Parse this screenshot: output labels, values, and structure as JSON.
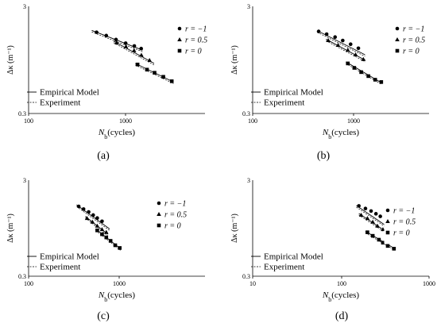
{
  "figure": {
    "panel_labels": [
      "(a)",
      "(b)",
      "(c)",
      "(d)"
    ],
    "y_axis_label": "Δκ (m⁻¹)",
    "x_axis_label_main": "N",
    "x_axis_label_sub": "b",
    "x_axis_label_rest": "(cycles)",
    "model_legend": {
      "empirical": "Empirical Model",
      "experiment": "Experiment"
    },
    "series_legend": {
      "r_minus1": "r = −1",
      "r_half": "r = 0.5",
      "r_zero": "r = 0"
    }
  },
  "chart_data": [
    {
      "type": "scatter",
      "panel": "(a)",
      "xlabel": "Nb(cycles)",
      "ylabel": "Δκ (m⁻¹)",
      "xscale": "log",
      "yscale": "log",
      "xlim": [
        100,
        10000
      ],
      "ylim": [
        0.3,
        3
      ],
      "x_tick_labels": [
        "100",
        "1000"
      ],
      "y_tick_labels": [
        "0.3",
        "3"
      ],
      "series": [
        {
          "name": "r = −1",
          "marker": "circle",
          "x": [
            590,
            760,
            980,
            1260,
            1580,
            1890
          ],
          "y": [
            1.72,
            1.6,
            1.47,
            1.36,
            1.28,
            1.21
          ]
        },
        {
          "name": "r = 0.5",
          "marker": "triangle",
          "x": [
            1000,
            1270,
            1570,
            1900,
            2350
          ],
          "y": [
            1.37,
            1.26,
            1.16,
            1.05,
            0.94
          ]
        },
        {
          "name": "r = 0",
          "marker": "square",
          "x": [
            1720,
            2200,
            2680,
            3370,
            4200
          ],
          "y": [
            0.86,
            0.77,
            0.72,
            0.66,
            0.6
          ]
        }
      ],
      "fits": [
        {
          "series": "r = −1",
          "x": [
            520,
            1960
          ],
          "y": [
            1.79,
            1.17
          ]
        },
        {
          "series": "r = 0.5",
          "x": [
            920,
            2650
          ],
          "y": [
            1.42,
            0.88
          ]
        },
        {
          "series": "r = 0",
          "x": [
            1620,
            4400
          ],
          "y": [
            0.88,
            0.59
          ]
        }
      ],
      "legend": "top-right"
    },
    {
      "type": "scatter",
      "panel": "(b)",
      "xlabel": "Nb(cycles)",
      "ylabel": "Δκ (m⁻¹)",
      "xscale": "log",
      "yscale": "log",
      "xlim": [
        100,
        10000
      ],
      "ylim": [
        0.3,
        3
      ],
      "x_tick_labels": [
        "100",
        "1000"
      ],
      "y_tick_labels": [
        "0.3",
        "3"
      ],
      "series": [
        {
          "name": "r = −1",
          "marker": "circle",
          "x": [
            560,
            690,
            860,
            1050,
            1290,
            1580
          ],
          "y": [
            1.75,
            1.65,
            1.55,
            1.44,
            1.33,
            1.22
          ]
        },
        {
          "name": "r = 0.5",
          "marker": "triangle",
          "x": [
            720,
            930,
            1200,
            1470,
            1800
          ],
          "y": [
            1.44,
            1.3,
            1.17,
            1.06,
            0.96
          ]
        },
        {
          "name": "r = 0",
          "marker": "square",
          "x": [
            1200,
            1420,
            1700,
            2050,
            2450,
            2870
          ],
          "y": [
            0.88,
            0.8,
            0.73,
            0.67,
            0.62,
            0.59
          ]
        }
      ],
      "fits": [
        {
          "series": "r = −1",
          "x": [
            540,
            1880
          ],
          "y": [
            1.78,
            1.06
          ]
        },
        {
          "series": "r = 0.5",
          "x": [
            680,
            1900
          ],
          "y": [
            1.48,
            0.94
          ]
        },
        {
          "series": "r = 0",
          "x": [
            1140,
            2900
          ],
          "y": [
            0.91,
            0.58
          ]
        }
      ],
      "legend": "top-right"
    },
    {
      "type": "scatter",
      "panel": "(c)",
      "xlabel": "Nb(cycles)",
      "ylabel": "Δκ (m⁻¹)",
      "xscale": "log",
      "yscale": "log",
      "xlim": [
        100,
        10000
      ],
      "ylim": [
        0.3,
        3
      ],
      "x_tick_labels": [
        "100",
        "1000"
      ],
      "y_tick_labels": [
        "0.3",
        "3"
      ],
      "series": [
        {
          "name": "r = −1",
          "marker": "circle",
          "x": [
            370,
            420,
            480,
            540,
            600,
            680
          ],
          "y": [
            1.6,
            1.5,
            1.4,
            1.3,
            1.21,
            1.12
          ]
        },
        {
          "name": "r = 0.5",
          "marker": "triangle",
          "x": [
            460,
            530,
            600,
            680,
            760
          ],
          "y": [
            1.2,
            1.1,
            1.0,
            0.92,
            0.86
          ]
        },
        {
          "name": "r = 0",
          "marker": "square",
          "x": [
            600,
            680,
            760,
            850,
            960,
            1080
          ],
          "y": [
            0.9,
            0.82,
            0.76,
            0.7,
            0.63,
            0.59
          ]
        }
      ],
      "fits": [
        {
          "series": "r = −1",
          "x": [
            350,
            830
          ],
          "y": [
            1.66,
            0.93
          ]
        },
        {
          "series": "r = 0.5",
          "x": [
            440,
            790
          ],
          "y": [
            1.26,
            0.82
          ]
        },
        {
          "series": "r = 0",
          "x": [
            580,
            1100
          ],
          "y": [
            0.93,
            0.58
          ]
        }
      ],
      "legend": "top-right"
    },
    {
      "type": "scatter",
      "panel": "(d)",
      "xlabel": "Nb(cycles)",
      "ylabel": "Δκ (m⁻¹)",
      "xscale": "log",
      "yscale": "log",
      "xlim": [
        10,
        1000
      ],
      "ylim": [
        0.3,
        3
      ],
      "x_tick_labels": [
        "10",
        "100",
        "1000"
      ],
      "y_tick_labels": [
        "0.3",
        "3"
      ],
      "series": [
        {
          "name": "r = −1",
          "marker": "circle",
          "x": [
            160,
            190,
            220,
            250,
            280
          ],
          "y": [
            1.62,
            1.52,
            1.43,
            1.34,
            1.26
          ]
        },
        {
          "name": "r = 0.5",
          "marker": "triangle",
          "x": [
            170,
            200,
            230,
            260,
            300
          ],
          "y": [
            1.3,
            1.2,
            1.1,
            1.0,
            0.92
          ]
        },
        {
          "name": "r = 0",
          "marker": "square",
          "x": [
            200,
            230,
            270,
            300,
            340,
            400
          ],
          "y": [
            0.86,
            0.79,
            0.72,
            0.67,
            0.62,
            0.58
          ]
        }
      ],
      "fits": [
        {
          "series": "r = −1",
          "x": [
            150,
            345
          ],
          "y": [
            1.63,
            0.97
          ]
        },
        {
          "series": "r = 0.5",
          "x": [
            160,
            300
          ],
          "y": [
            1.35,
            0.92
          ]
        },
        {
          "series": "r = 0",
          "x": [
            190,
            410
          ],
          "y": [
            0.88,
            0.58
          ]
        }
      ],
      "legend": "top-right"
    }
  ]
}
